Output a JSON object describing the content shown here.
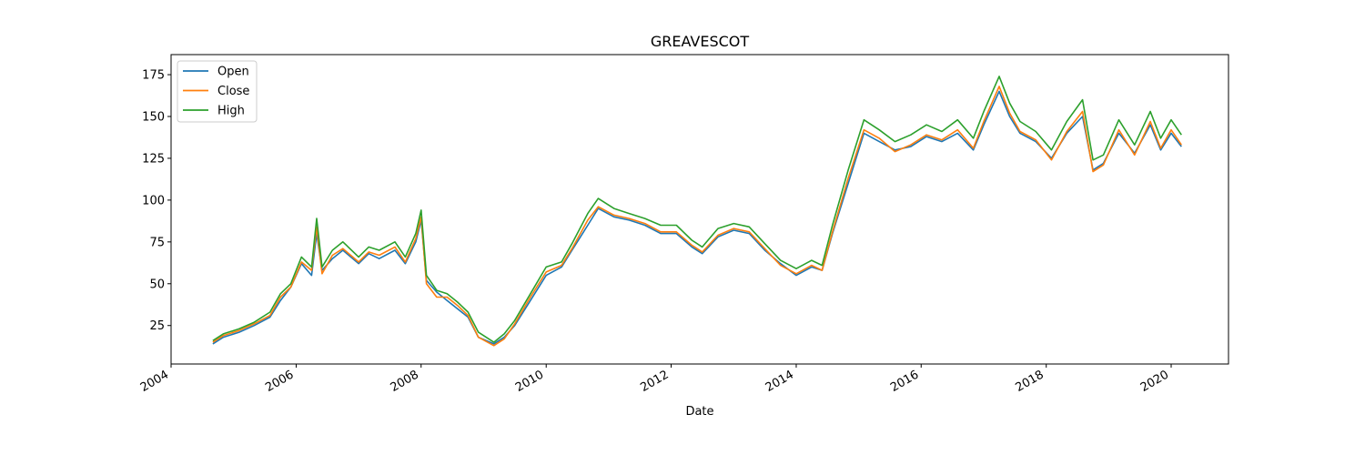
{
  "chart_data": {
    "type": "line",
    "title": "GREAVESCOT",
    "xlabel": "Date",
    "ylabel": "",
    "x_ticks": [
      "2004",
      "2006",
      "2008",
      "2010",
      "2012",
      "2014",
      "2016",
      "2018",
      "2020"
    ],
    "y_ticks": [
      25,
      50,
      75,
      100,
      125,
      150,
      175
    ],
    "xlim": [
      "2004-01-01",
      "2020-12-01"
    ],
    "ylim": [
      2,
      187
    ],
    "legend_placement": "top-left",
    "grid": false,
    "x": [
      "2004-09-01",
      "2004-11-01",
      "2005-02-01",
      "2005-05-01",
      "2005-08-01",
      "2005-10-01",
      "2005-12-01",
      "2006-02-01",
      "2006-04-01",
      "2006-05-01",
      "2006-06-01",
      "2006-08-01",
      "2006-10-01",
      "2007-01-01",
      "2007-03-01",
      "2007-05-01",
      "2007-08-01",
      "2007-10-01",
      "2007-12-01",
      "2008-01-01",
      "2008-02-01",
      "2008-04-01",
      "2008-06-01",
      "2008-08-01",
      "2008-10-01",
      "2008-12-01",
      "2009-03-01",
      "2009-05-01",
      "2009-07-01",
      "2009-10-01",
      "2010-01-01",
      "2010-04-01",
      "2010-06-01",
      "2010-09-01",
      "2010-11-01",
      "2011-02-01",
      "2011-05-01",
      "2011-08-01",
      "2011-11-01",
      "2012-02-01",
      "2012-05-01",
      "2012-07-01",
      "2012-10-01",
      "2013-01-01",
      "2013-04-01",
      "2013-07-01",
      "2013-10-01",
      "2014-01-01",
      "2014-04-01",
      "2014-06-01",
      "2014-08-01",
      "2014-11-01",
      "2015-02-01",
      "2015-05-01",
      "2015-08-01",
      "2015-11-01",
      "2016-02-01",
      "2016-05-01",
      "2016-08-01",
      "2016-11-01",
      "2017-01-01",
      "2017-04-01",
      "2017-06-01",
      "2017-08-01",
      "2017-11-01",
      "2018-02-01",
      "2018-05-01",
      "2018-08-01",
      "2018-10-01",
      "2018-12-01",
      "2019-03-01",
      "2019-06-01",
      "2019-09-01",
      "2019-11-01",
      "2020-01-01",
      "2020-03-01"
    ],
    "series": [
      {
        "name": "Open",
        "color": "#1f77b4",
        "values": [
          14,
          18,
          21,
          25,
          30,
          40,
          48,
          62,
          55,
          80,
          58,
          65,
          70,
          62,
          68,
          65,
          70,
          62,
          75,
          88,
          52,
          45,
          40,
          35,
          30,
          18,
          14,
          18,
          25,
          40,
          55,
          60,
          70,
          85,
          95,
          90,
          88,
          85,
          80,
          80,
          72,
          68,
          78,
          82,
          80,
          70,
          62,
          55,
          60,
          58,
          80,
          110,
          140,
          135,
          130,
          132,
          138,
          135,
          140,
          130,
          145,
          165,
          150,
          140,
          135,
          125,
          140,
          150,
          118,
          122,
          140,
          128,
          145,
          130,
          140,
          132
        ]
      },
      {
        "name": "Close",
        "color": "#ff7f0e",
        "values": [
          15,
          19,
          22,
          26,
          31,
          42,
          48,
          63,
          58,
          84,
          56,
          67,
          71,
          63,
          69,
          67,
          72,
          63,
          77,
          90,
          50,
          42,
          42,
          37,
          31,
          18,
          13,
          17,
          26,
          42,
          57,
          61,
          71,
          88,
          96,
          91,
          89,
          86,
          81,
          81,
          73,
          69,
          79,
          83,
          81,
          71,
          61,
          56,
          61,
          58,
          81,
          113,
          142,
          137,
          129,
          133,
          139,
          136,
          142,
          131,
          147,
          168,
          152,
          141,
          136,
          124,
          141,
          153,
          117,
          121,
          142,
          127,
          147,
          131,
          142,
          133
        ]
      },
      {
        "name": "High",
        "color": "#2ca02c",
        "values": [
          16,
          20,
          23,
          27,
          33,
          44,
          50,
          66,
          60,
          89,
          60,
          70,
          75,
          66,
          72,
          70,
          75,
          66,
          80,
          94,
          55,
          46,
          44,
          39,
          33,
          21,
          15,
          20,
          28,
          44,
          60,
          63,
          74,
          92,
          101,
          95,
          92,
          89,
          85,
          85,
          76,
          72,
          83,
          86,
          84,
          74,
          64,
          59,
          64,
          61,
          85,
          118,
          148,
          142,
          135,
          139,
          145,
          141,
          148,
          137,
          153,
          174,
          158,
          147,
          141,
          130,
          147,
          160,
          124,
          127,
          148,
          133,
          153,
          137,
          148,
          139
        ]
      }
    ]
  }
}
